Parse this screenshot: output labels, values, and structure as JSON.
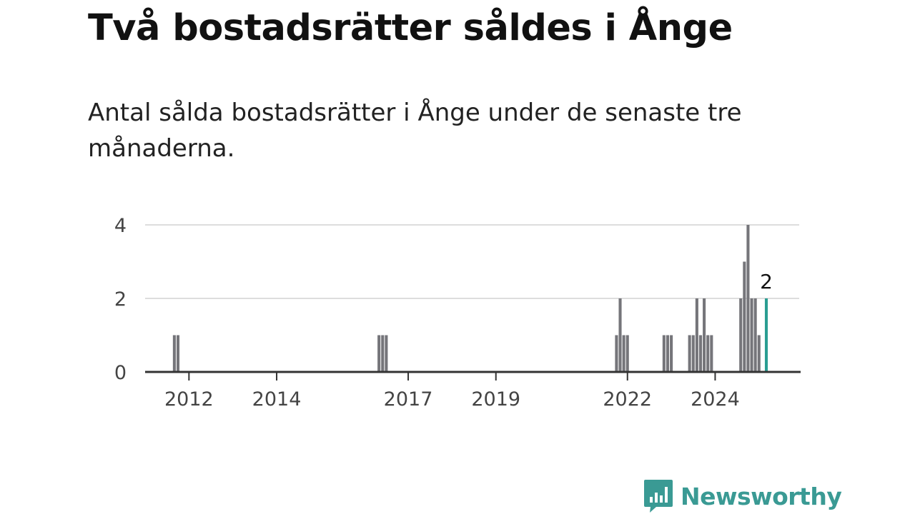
{
  "title": "Två bostadsrätter såldes i Ånge",
  "subtitle": "Antal sålda bostadsrätter i Ånge under de senaste tre månaderna.",
  "logo": {
    "text": "Newsworthy",
    "icon": "newsworthy-bar-chart-icon",
    "color": "#3a9a94"
  },
  "chart_data": {
    "type": "bar",
    "title": "",
    "xlabel": "",
    "ylabel": "",
    "xlim": [
      "2011-01",
      "2025-12"
    ],
    "ylim": [
      0,
      4
    ],
    "yticks": [
      0,
      2,
      4
    ],
    "xticks": [
      {
        "label": "2012",
        "date": "2012-01"
      },
      {
        "label": "2014",
        "date": "2014-01"
      },
      {
        "label": "2017",
        "date": "2017-01"
      },
      {
        "label": "2019",
        "date": "2019-01"
      },
      {
        "label": "2022",
        "date": "2022-01"
      },
      {
        "label": "2024",
        "date": "2024-01"
      }
    ],
    "grid": true,
    "bar_color": "#75757a",
    "highlight_color": "#2a9d92",
    "annotation": {
      "date": "2025-03",
      "value": 2,
      "text": "2"
    },
    "series": [
      {
        "values": [
          {
            "date": "2011-09",
            "value": 1
          },
          {
            "date": "2011-10",
            "value": 1
          },
          {
            "date": "2016-05",
            "value": 1
          },
          {
            "date": "2016-06",
            "value": 1
          },
          {
            "date": "2016-07",
            "value": 1
          },
          {
            "date": "2021-10",
            "value": 1
          },
          {
            "date": "2021-11",
            "value": 2
          },
          {
            "date": "2021-12",
            "value": 1
          },
          {
            "date": "2022-01",
            "value": 1
          },
          {
            "date": "2022-11",
            "value": 1
          },
          {
            "date": "2022-12",
            "value": 1
          },
          {
            "date": "2023-01",
            "value": 1
          },
          {
            "date": "2023-06",
            "value": 1
          },
          {
            "date": "2023-07",
            "value": 1
          },
          {
            "date": "2023-08",
            "value": 2
          },
          {
            "date": "2023-09",
            "value": 1
          },
          {
            "date": "2023-10",
            "value": 2
          },
          {
            "date": "2023-11",
            "value": 1
          },
          {
            "date": "2023-12",
            "value": 1
          },
          {
            "date": "2024-08",
            "value": 2
          },
          {
            "date": "2024-09",
            "value": 3
          },
          {
            "date": "2024-10",
            "value": 4
          },
          {
            "date": "2024-11",
            "value": 2
          },
          {
            "date": "2024-12",
            "value": 2
          },
          {
            "date": "2025-01",
            "value": 1
          },
          {
            "date": "2025-02",
            "value": 0
          },
          {
            "date": "2025-03",
            "value": 2,
            "highlight": true
          }
        ]
      }
    ]
  }
}
